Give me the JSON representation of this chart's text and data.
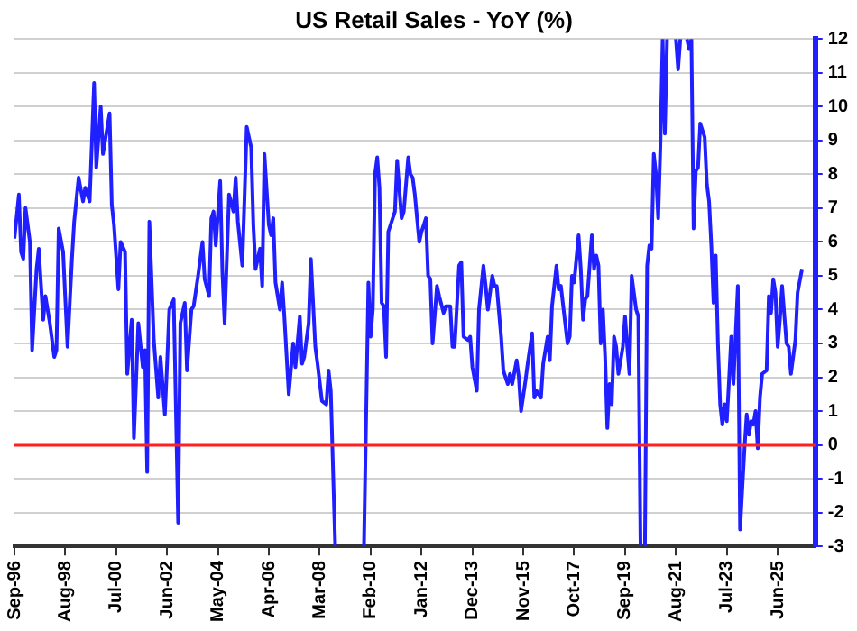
{
  "chart_data": {
    "type": "line",
    "title": "US Retail Sales - YoY (%)",
    "color": "#1f1fff",
    "marker": "none",
    "grid": "y",
    "xlim": [
      "1996-09",
      "2026-11"
    ],
    "xticks": [
      {
        "value": "1996-09",
        "label": "Sep-96"
      },
      {
        "value": "1998-08",
        "label": "Aug-98"
      },
      {
        "value": "2000-07",
        "label": "Jul-00"
      },
      {
        "value": "2002-06",
        "label": "Jun-02"
      },
      {
        "value": "2004-05",
        "label": "May-04"
      },
      {
        "value": "2006-04",
        "label": "Apr-06"
      },
      {
        "value": "2008-03",
        "label": "Mar-08"
      },
      {
        "value": "2010-02",
        "label": "Feb-10"
      },
      {
        "value": "2012-01",
        "label": "Jan-12"
      },
      {
        "value": "2013-12",
        "label": "Dec-13"
      },
      {
        "value": "2015-11",
        "label": "Nov-15"
      },
      {
        "value": "2017-10",
        "label": "Oct-17"
      },
      {
        "value": "2019-09",
        "label": "Sep-19"
      },
      {
        "value": "2021-08",
        "label": "Aug-21"
      },
      {
        "value": "2023-07",
        "label": "Jul-23"
      },
      {
        "value": "2025-06",
        "label": "Jun-25"
      }
    ],
    "ylim": [
      -3,
      12
    ],
    "yticks": [
      -3,
      -2,
      -1,
      0,
      1,
      2,
      3,
      4,
      5,
      6,
      7,
      8,
      9,
      10,
      11,
      12
    ],
    "ref_lines": [
      {
        "axis": "y",
        "value": 0,
        "color": "#ff2020"
      }
    ],
    "x": [
      "1996-09",
      "1996-11",
      "1996-12",
      "1997-01",
      "1997-02",
      "1997-04",
      "1997-05",
      "1997-07",
      "1997-08",
      "1997-10",
      "1997-11",
      "1998-01",
      "1998-03",
      "1998-04",
      "1998-05",
      "1998-07",
      "1998-09",
      "1998-11",
      "1998-12",
      "1999-02",
      "1999-04",
      "1999-05",
      "1999-07",
      "1999-09",
      "1999-10",
      "1999-12",
      "2000-01",
      "2000-04",
      "2000-05",
      "2000-06",
      "2000-08",
      "2000-09",
      "2000-11",
      "2000-12",
      "2001-02",
      "2001-03",
      "2001-05",
      "2001-07",
      "2001-08",
      "2001-09",
      "2001-10",
      "2001-12",
      "2002-02",
      "2002-03",
      "2002-05",
      "2002-06",
      "2002-07",
      "2002-09",
      "2002-11",
      "2002-12",
      "2003-02",
      "2003-03",
      "2003-05",
      "2003-06",
      "2003-08",
      "2003-10",
      "2003-11",
      "2004-01",
      "2004-02",
      "2004-03",
      "2004-04",
      "2004-06",
      "2004-07",
      "2004-08",
      "2004-10",
      "2004-12",
      "2005-01",
      "2005-02",
      "2005-04",
      "2005-05",
      "2005-06",
      "2005-08",
      "2005-09",
      "2005-10",
      "2005-12",
      "2006-01",
      "2006-02",
      "2006-04",
      "2006-05",
      "2006-06",
      "2006-07",
      "2006-09",
      "2006-10",
      "2006-11",
      "2007-01",
      "2007-03",
      "2007-04",
      "2007-06",
      "2007-07",
      "2007-08",
      "2007-10",
      "2007-11",
      "2008-01",
      "2008-02",
      "2008-04",
      "2008-06",
      "2008-07",
      "2008-08",
      "2008-10",
      "2009-04",
      "2009-11",
      "2010-01",
      "2010-02",
      "2010-03",
      "2010-04",
      "2010-05",
      "2010-06",
      "2010-07",
      "2010-08",
      "2010-09",
      "2010-10",
      "2010-12",
      "2011-01",
      "2011-02",
      "2011-04",
      "2011-05",
      "2011-07",
      "2011-08",
      "2011-09",
      "2011-10",
      "2011-12",
      "2012-01",
      "2012-03",
      "2012-04",
      "2012-05",
      "2012-06",
      "2012-08",
      "2012-09",
      "2012-11",
      "2012-12",
      "2013-02",
      "2013-03",
      "2013-04",
      "2013-06",
      "2013-07",
      "2013-08",
      "2013-10",
      "2013-11",
      "2013-12",
      "2014-02",
      "2014-03",
      "2014-05",
      "2014-06",
      "2014-07",
      "2014-09",
      "2014-10",
      "2014-11",
      "2015-01",
      "2015-02",
      "2015-04",
      "2015-05",
      "2015-06",
      "2015-08",
      "2015-09",
      "2015-10",
      "2015-12",
      "2016-01",
      "2016-03",
      "2016-04",
      "2016-05",
      "2016-07",
      "2016-08",
      "2016-10",
      "2016-11",
      "2016-12",
      "2017-02",
      "2017-03",
      "2017-04",
      "2017-07",
      "2017-08",
      "2017-09",
      "2017-10",
      "2017-12",
      "2018-01",
      "2018-02",
      "2018-03",
      "2018-04",
      "2018-06",
      "2018-07",
      "2018-08",
      "2018-09",
      "2018-10",
      "2018-11",
      "2018-12",
      "2019-01",
      "2019-02",
      "2019-03",
      "2019-04",
      "2019-05",
      "2019-06",
      "2019-08",
      "2019-09",
      "2019-10",
      "2019-11",
      "2019-12",
      "2020-02",
      "2020-03",
      "2020-04",
      "2020-05",
      "2020-06",
      "2020-07",
      "2020-08",
      "2020-09",
      "2020-10",
      "2020-11",
      "2020-12",
      "2021-01",
      "2021-02",
      "2021-03",
      "2021-04",
      "2021-06",
      "2021-08",
      "2021-09",
      "2021-10",
      "2021-12",
      "2022-01",
      "2022-02",
      "2022-03",
      "2022-04",
      "2022-05",
      "2022-06",
      "2022-07",
      "2022-09",
      "2022-10",
      "2022-11",
      "2022-12",
      "2023-01",
      "2023-02",
      "2023-03",
      "2023-04",
      "2023-05",
      "2023-06",
      "2023-07",
      "2023-08",
      "2023-09",
      "2023-10",
      "2023-12",
      "2024-01",
      "2024-03",
      "2024-04",
      "2024-05",
      "2024-06",
      "2024-07",
      "2024-08",
      "2024-09",
      "2024-10",
      "2024-11",
      "2025-01",
      "2025-02",
      "2025-03",
      "2025-04",
      "2025-05",
      "2025-06",
      "2025-07",
      "2025-08",
      "2025-10",
      "2025-11",
      "2025-12",
      "2026-02",
      "2026-03",
      "2026-05"
    ],
    "values": [
      6.1,
      7.4,
      5.7,
      5.5,
      7.0,
      6.0,
      2.8,
      5.2,
      5.8,
      3.7,
      4.4,
      3.6,
      2.6,
      2.8,
      6.4,
      5.7,
      2.9,
      5.5,
      6.6,
      7.9,
      7.2,
      7.6,
      7.2,
      10.7,
      8.2,
      10.0,
      8.6,
      9.8,
      7.1,
      6.5,
      4.6,
      6.0,
      5.7,
      2.1,
      3.7,
      0.2,
      3.6,
      2.3,
      2.8,
      -0.8,
      6.6,
      3.1,
      1.4,
      2.6,
      0.9,
      2.4,
      4.0,
      4.3,
      -2.3,
      3.6,
      4.2,
      2.2,
      4.0,
      4.1,
      5.0,
      6.0,
      4.9,
      4.4,
      6.7,
      6.9,
      5.9,
      7.8,
      5.1,
      3.6,
      7.4,
      6.9,
      7.9,
      6.6,
      5.3,
      7.3,
      9.4,
      8.8,
      6.5,
      5.2,
      5.8,
      4.7,
      8.6,
      6.5,
      6.2,
      6.7,
      4.8,
      4.0,
      4.8,
      3.8,
      1.5,
      3.0,
      2.3,
      3.8,
      2.4,
      2.6,
      3.6,
      5.5,
      2.9,
      2.4,
      1.3,
      1.2,
      2.2,
      1.6,
      -3,
      null,
      -3,
      4.8,
      3.2,
      4.0,
      8.0,
      8.5,
      7.6,
      4.2,
      4.1,
      2.6,
      6.3,
      6.7,
      6.9,
      8.4,
      6.7,
      6.9,
      8.5,
      8.0,
      7.9,
      7.4,
      6.0,
      6.3,
      6.7,
      5.0,
      4.9,
      3.0,
      4.7,
      4.4,
      3.9,
      4.1,
      4.1,
      2.9,
      2.9,
      5.3,
      5.4,
      3.2,
      3.1,
      3.2,
      2.3,
      1.6,
      4.0,
      5.3,
      4.7,
      4.0,
      5.0,
      4.7,
      4.7,
      3.2,
      2.2,
      1.8,
      2.1,
      1.8,
      2.5,
      2.0,
      1.0,
      1.9,
      2.4,
      3.3,
      1.4,
      1.6,
      1.4,
      2.4,
      3.2,
      2.5,
      4.1,
      5.3,
      4.6,
      4.7,
      3.0,
      3.2,
      5.0,
      4.8,
      6.2,
      5.2,
      3.7,
      4.3,
      4.4,
      6.2,
      5.2,
      5.6,
      5.3,
      3.0,
      4.0,
      2.6,
      0.5,
      1.8,
      1.2,
      3.2,
      2.9,
      2.1,
      2.9,
      3.8,
      2.9,
      2.1,
      5.0,
      4.0,
      3.8,
      -3,
      null,
      -3,
      5.3,
      5.9,
      5.8,
      8.6,
      8.0,
      6.7,
      8.9,
      12,
      9.2,
      12,
      null,
      12,
      11.1,
      12,
      null,
      12,
      11.7,
      12,
      6.4,
      8.1,
      8.2,
      9.5,
      9.1,
      7.7,
      7.2,
      5.9,
      4.2,
      5.6,
      3.0,
      1.2,
      0.6,
      1.2,
      0.7,
      1.9,
      3.2,
      1.8,
      4.7,
      -2.5,
      -0.1,
      0.9,
      0.3,
      0.7,
      0.6,
      1.0,
      -0.1,
      1.4,
      2.1,
      2.2,
      4.4,
      3.9,
      4.9,
      4.5,
      2.9,
      3.7,
      4.7,
      3.0,
      2.9,
      2.1,
      3.1,
      4.5,
      5.2
    ]
  }
}
